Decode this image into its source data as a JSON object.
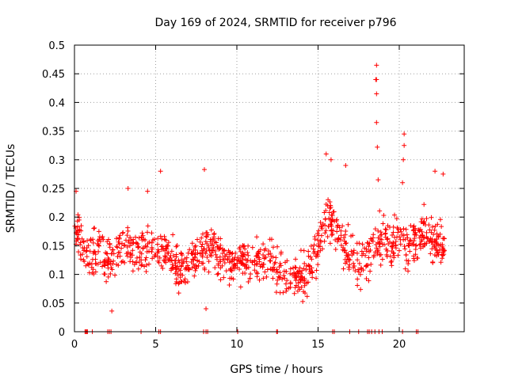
{
  "chart_data": {
    "type": "scatter",
    "title": "Day 169 of 2024, SRMTID for receiver p796",
    "xlabel": "GPS time / hours",
    "ylabel": "SRMTID / TECUs",
    "xlim": [
      0,
      24
    ],
    "ylim": [
      0,
      0.5
    ],
    "x_ticks": [
      0,
      5,
      10,
      15,
      20
    ],
    "x_tick_labels": [
      "0",
      "5",
      "10",
      "15",
      "20"
    ],
    "y_ticks": [
      0,
      0.05,
      0.1,
      0.15,
      0.2,
      0.25,
      0.3,
      0.35,
      0.4,
      0.45,
      0.5
    ],
    "y_tick_labels": [
      "0",
      "0.05",
      "0.1",
      "0.15",
      "0.2",
      "0.25",
      "0.3",
      "0.35",
      "0.4",
      "0.45",
      "0.5"
    ],
    "grid": true,
    "marker": "+",
    "color": "#ff0000",
    "series": [
      {
        "name": "SRMTID",
        "profile": [
          [
            0.0,
            0.19
          ],
          [
            0.5,
            0.15
          ],
          [
            1.0,
            0.14
          ],
          [
            1.5,
            0.14
          ],
          [
            2.0,
            0.12
          ],
          [
            2.5,
            0.14
          ],
          [
            3.0,
            0.15
          ],
          [
            3.5,
            0.15
          ],
          [
            4.0,
            0.14
          ],
          [
            4.5,
            0.15
          ],
          [
            5.0,
            0.13
          ],
          [
            5.5,
            0.14
          ],
          [
            6.0,
            0.13
          ],
          [
            6.5,
            0.11
          ],
          [
            7.0,
            0.12
          ],
          [
            7.5,
            0.13
          ],
          [
            8.0,
            0.14
          ],
          [
            8.5,
            0.15
          ],
          [
            9.0,
            0.13
          ],
          [
            9.5,
            0.12
          ],
          [
            10.0,
            0.12
          ],
          [
            10.5,
            0.12
          ],
          [
            11.0,
            0.12
          ],
          [
            11.5,
            0.12
          ],
          [
            12.0,
            0.13
          ],
          [
            12.5,
            0.1
          ],
          [
            13.0,
            0.1
          ],
          [
            13.5,
            0.09
          ],
          [
            14.0,
            0.1
          ],
          [
            14.5,
            0.11
          ],
          [
            15.0,
            0.15
          ],
          [
            15.5,
            0.2
          ],
          [
            16.0,
            0.18
          ],
          [
            16.5,
            0.16
          ],
          [
            17.0,
            0.13
          ],
          [
            17.5,
            0.12
          ],
          [
            18.0,
            0.13
          ],
          [
            18.5,
            0.16
          ],
          [
            19.0,
            0.16
          ],
          [
            19.5,
            0.15
          ],
          [
            20.0,
            0.17
          ],
          [
            20.5,
            0.14
          ],
          [
            21.0,
            0.16
          ],
          [
            21.5,
            0.18
          ],
          [
            22.0,
            0.16
          ],
          [
            22.5,
            0.15
          ],
          [
            22.8,
            0.14
          ]
        ],
        "spread": 0.035,
        "points_per_hour": 48,
        "peaks": [
          {
            "x": 15.5,
            "y": 0.31
          },
          {
            "x": 15.8,
            "y": 0.3
          },
          {
            "x": 16.7,
            "y": 0.29
          },
          {
            "x": 18.6,
            "y": 0.465
          },
          {
            "x": 18.55,
            "y": 0.44
          },
          {
            "x": 18.6,
            "y": 0.44
          },
          {
            "x": 18.6,
            "y": 0.415
          },
          {
            "x": 18.6,
            "y": 0.365
          },
          {
            "x": 18.65,
            "y": 0.322
          },
          {
            "x": 18.7,
            "y": 0.265
          },
          {
            "x": 20.3,
            "y": 0.345
          },
          {
            "x": 20.3,
            "y": 0.325
          },
          {
            "x": 20.25,
            "y": 0.3
          },
          {
            "x": 20.2,
            "y": 0.26
          },
          {
            "x": 22.2,
            "y": 0.28
          },
          {
            "x": 22.7,
            "y": 0.275
          },
          {
            "x": 8.0,
            "y": 0.283
          },
          {
            "x": 5.3,
            "y": 0.28
          },
          {
            "x": 3.3,
            "y": 0.25
          },
          {
            "x": 4.5,
            "y": 0.245
          },
          {
            "x": 0.1,
            "y": 0.245
          },
          {
            "x": 2.3,
            "y": 0.036
          },
          {
            "x": 8.1,
            "y": 0.04
          }
        ],
        "zero_points_x": [
          0.65,
          0.7,
          0.75,
          0.8,
          1.1,
          2.05,
          2.15,
          2.25,
          4.1,
          5.2,
          5.3,
          7.95,
          8.1,
          8.2,
          10.05,
          12.45,
          12.5,
          15.9,
          16.0,
          16.95,
          17.5,
          18.05,
          18.15,
          18.3,
          18.5,
          18.75,
          18.95,
          20.2,
          21.05,
          21.15
        ]
      }
    ]
  }
}
